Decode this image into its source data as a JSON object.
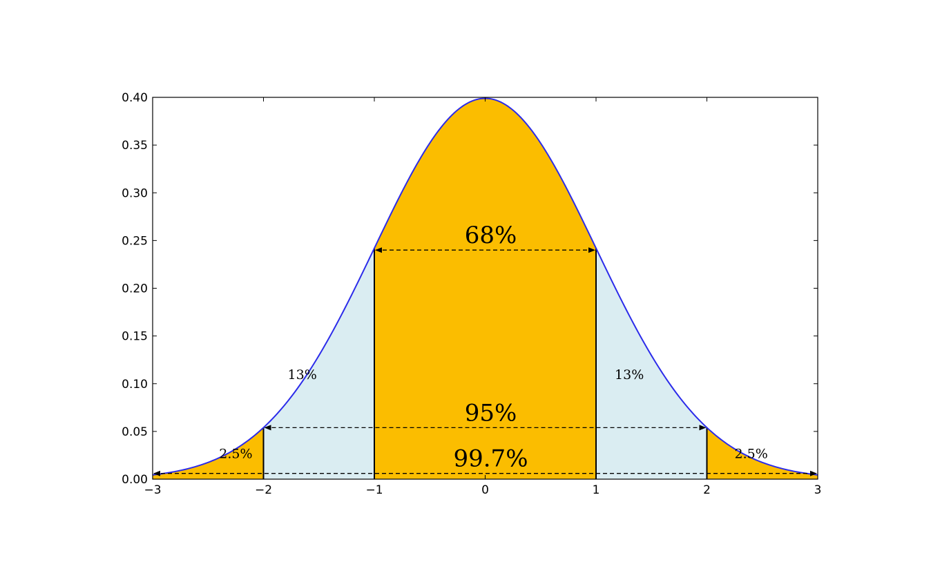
{
  "chart_data": {
    "type": "area",
    "title": "",
    "xlabel": "",
    "ylabel": "",
    "xlim": [
      -3,
      3
    ],
    "ylim": [
      0,
      0.4
    ],
    "grid": false,
    "x_ticks": [
      "−3",
      "−2",
      "−1",
      "0",
      "1",
      "2",
      "3"
    ],
    "x_tick_values": [
      -3,
      -2,
      -1,
      0,
      1,
      2,
      3
    ],
    "y_ticks": [
      "0.00",
      "0.05",
      "0.10",
      "0.15",
      "0.20",
      "0.25",
      "0.30",
      "0.35",
      "0.40"
    ],
    "y_tick_values": [
      0,
      0.05,
      0.1,
      0.15,
      0.2,
      0.25,
      0.3,
      0.35,
      0.4
    ],
    "curve": {
      "function": "standard normal density",
      "mean": 0,
      "sd": 1,
      "color": "#2b2bea"
    },
    "regions": [
      {
        "from": -3,
        "to": -2,
        "color": "#fbbd00",
        "label": "2.5%"
      },
      {
        "from": -2,
        "to": -1,
        "color": "#daedf2",
        "label": "13%"
      },
      {
        "from": -1,
        "to": 1,
        "color": "#fbbd00",
        "label": ""
      },
      {
        "from": 1,
        "to": 2,
        "color": "#daedf2",
        "label": "13%"
      },
      {
        "from": 2,
        "to": 3,
        "color": "#fbbd00",
        "label": "2.5%"
      }
    ],
    "annotations": [
      {
        "label": "68%",
        "from": -1,
        "to": 1,
        "y": 0.24
      },
      {
        "label": "95%",
        "from": -2,
        "to": 2,
        "y": 0.054
      },
      {
        "label": "99.7%",
        "from": -3,
        "to": 3,
        "y": 0.006
      }
    ],
    "boundaries": [
      -2,
      -1,
      1,
      2
    ]
  }
}
